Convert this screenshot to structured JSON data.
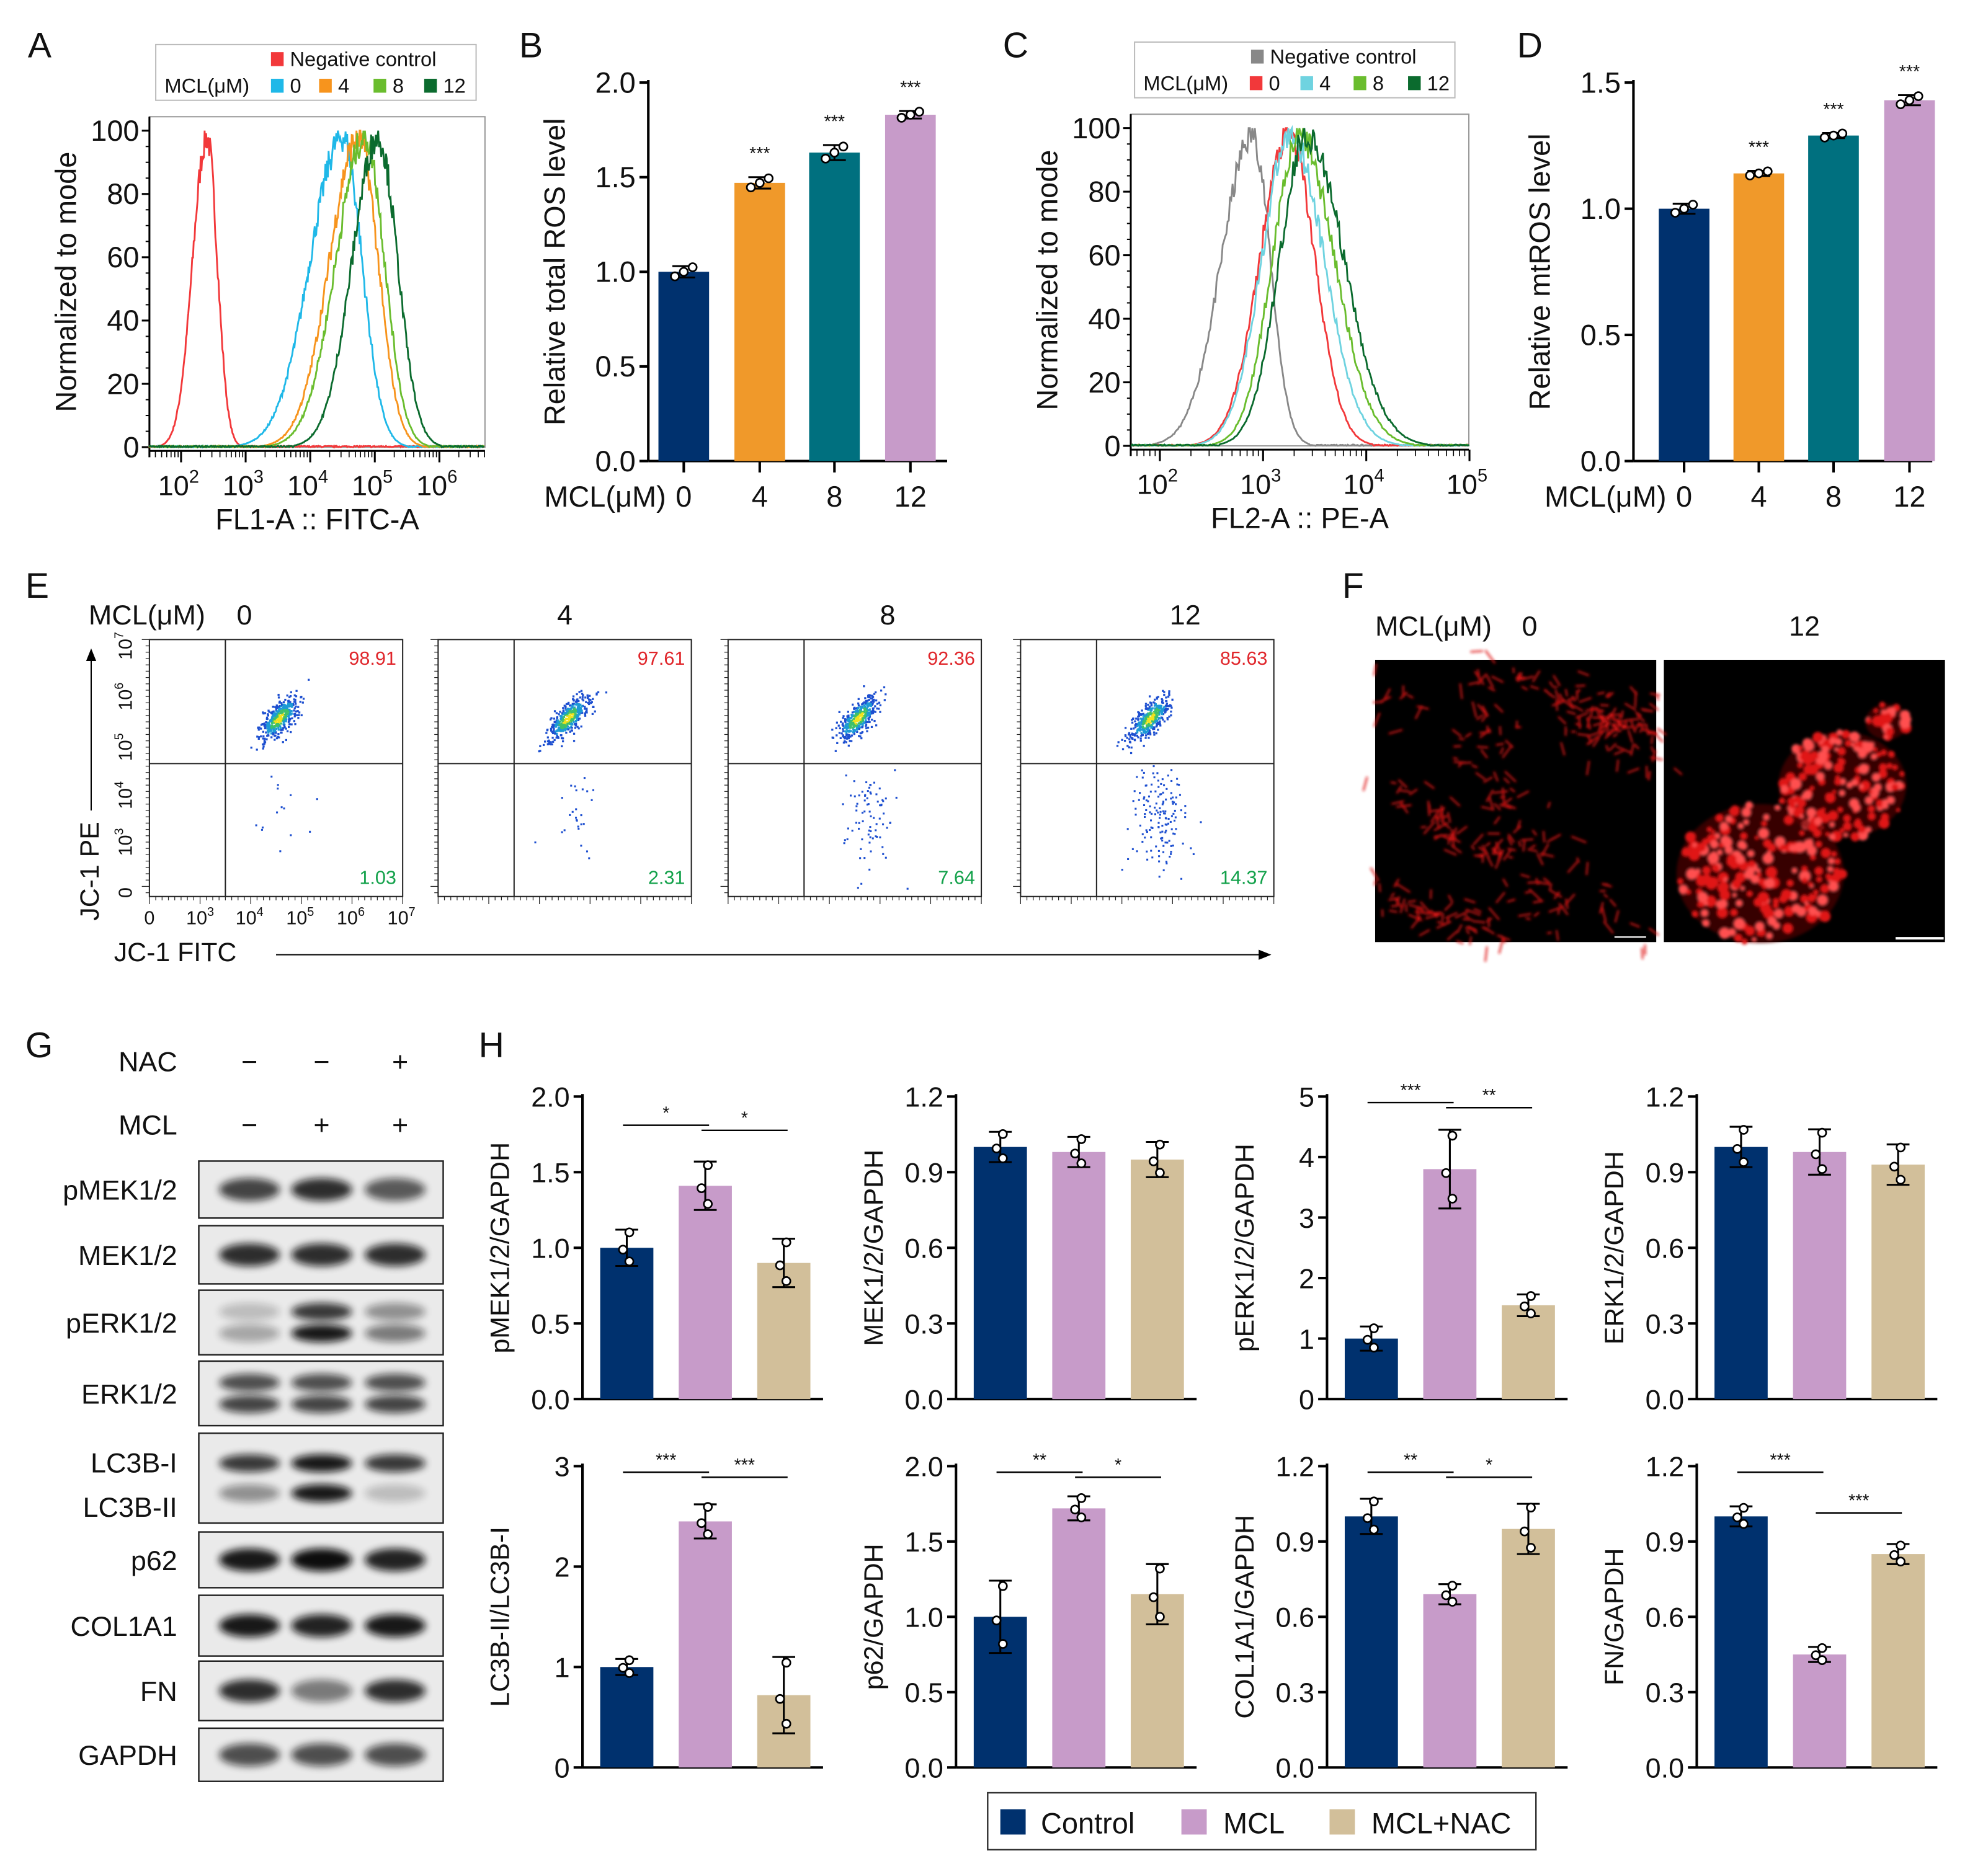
{
  "panel_labels": {
    "A": "A",
    "B": "B",
    "C": "C",
    "D": "D",
    "E": "E",
    "F": "F",
    "G": "G",
    "H": "H"
  },
  "chart_data": [
    {
      "id": "A",
      "type": "line",
      "xlabel": "FL1-A :: FITC-A",
      "ylabel": "Normalized to mode",
      "x_scale": "log10",
      "xlim_log10": [
        1.5,
        6.7
      ],
      "ylim": [
        0,
        100
      ],
      "xtick_exponents": [
        "2",
        "3",
        "4",
        "5",
        "6"
      ],
      "yticks": [
        "0",
        "20",
        "40",
        "60",
        "80",
        "100"
      ],
      "legend": {
        "negative_label": "Negative control",
        "prefix": "MCL(μM)",
        "entries": [
          "0",
          "4",
          "8",
          "12"
        ]
      },
      "series": [
        {
          "name": "Negative control",
          "color": "#f2383a",
          "peak_log10": 2.4,
          "spread_left": 0.22,
          "spread_right": 0.16
        },
        {
          "name": "0",
          "color": "#1fb8e8",
          "peak_log10": 4.5,
          "spread_left": 0.5,
          "spread_right": 0.3
        },
        {
          "name": "4",
          "color": "#f7941d",
          "peak_log10": 4.75,
          "spread_left": 0.45,
          "spread_right": 0.3
        },
        {
          "name": "8",
          "color": "#6abd2e",
          "peak_log10": 4.85,
          "spread_left": 0.45,
          "spread_right": 0.3
        },
        {
          "name": "12",
          "color": "#0b6b2e",
          "peak_log10": 5.05,
          "spread_left": 0.4,
          "spread_right": 0.3
        }
      ]
    },
    {
      "id": "B",
      "type": "bar",
      "ylabel": "Relative total ROS level",
      "xlabel_prefix": "MCL(μM)",
      "categories": [
        "0",
        "4",
        "8",
        "12"
      ],
      "values": [
        1.0,
        1.47,
        1.63,
        1.83
      ],
      "errors": [
        0.03,
        0.03,
        0.04,
        0.02
      ],
      "ylim": [
        0,
        2.0
      ],
      "yticks": [
        "0.0",
        "0.5",
        "1.0",
        "1.5",
        "2.0"
      ],
      "significance": [
        "",
        "***",
        "***",
        "***"
      ],
      "colors": [
        "#00316e",
        "#f0992a",
        "#00707f",
        "#c79bc9"
      ]
    },
    {
      "id": "C",
      "type": "line",
      "xlabel": "FL2-A :: PE-A",
      "ylabel": "Normalized to mode",
      "x_scale": "log10",
      "xlim_log10": [
        1.72,
        5.0
      ],
      "ylim": [
        0,
        100
      ],
      "xtick_exponents": [
        "2",
        "3",
        "4",
        "5"
      ],
      "yticks": [
        "0",
        "20",
        "40",
        "60",
        "80",
        "100"
      ],
      "legend": {
        "negative_label": "Negative control",
        "prefix": "MCL(μM)",
        "entries": [
          "0",
          "4",
          "8",
          "12"
        ]
      },
      "series": [
        {
          "name": "Negative control",
          "color": "#888888",
          "peak_log10": 2.9,
          "spread_left": 0.3,
          "spread_right": 0.17
        },
        {
          "name": "0",
          "color": "#f2383a",
          "peak_log10": 3.25,
          "spread_left": 0.28,
          "spread_right": 0.25
        },
        {
          "name": "4",
          "color": "#6fd3e0",
          "peak_log10": 3.27,
          "spread_left": 0.28,
          "spread_right": 0.32
        },
        {
          "name": "8",
          "color": "#6abd2e",
          "peak_log10": 3.35,
          "spread_left": 0.26,
          "spread_right": 0.34
        },
        {
          "name": "12",
          "color": "#0b6b2e",
          "peak_log10": 3.42,
          "spread_left": 0.26,
          "spread_right": 0.36
        }
      ]
    },
    {
      "id": "D",
      "type": "bar",
      "ylabel": "Relative mtROS level",
      "xlabel_prefix": "MCL(μM)",
      "categories": [
        "0",
        "4",
        "8",
        "12"
      ],
      "values": [
        1.0,
        1.14,
        1.29,
        1.43
      ],
      "errors": [
        0.02,
        0.01,
        0.01,
        0.02
      ],
      "ylim": [
        0,
        1.5
      ],
      "yticks": [
        "0.0",
        "0.5",
        "1.0",
        "1.5"
      ],
      "significance": [
        "",
        "***",
        "***",
        "***"
      ],
      "colors": [
        "#00316e",
        "#f0992a",
        "#00707f",
        "#c79bc9"
      ]
    },
    {
      "id": "E",
      "type": "scatter",
      "xlabel": "JC-1 FITC",
      "ylabel": "JC-1 PE",
      "title_prefix": "MCL(μM)",
      "tick_labels": [
        "0",
        "3",
        "4",
        "5",
        "6",
        "7"
      ],
      "panels": [
        {
          "label": "0",
          "upper_right_pct": "98.91",
          "lower_right_pct": "1.03"
        },
        {
          "label": "4",
          "upper_right_pct": "97.61",
          "lower_right_pct": "2.31"
        },
        {
          "label": "8",
          "upper_right_pct": "92.36",
          "lower_right_pct": "7.64"
        },
        {
          "label": "12",
          "upper_right_pct": "85.63",
          "lower_right_pct": "14.37"
        }
      ],
      "upper_color": "#e0262b",
      "lower_color": "#12a14a"
    },
    {
      "id": "H1",
      "type": "bar",
      "ylabel": "pMEK1/2/GAPDH",
      "values": [
        1.0,
        1.41,
        0.9
      ],
      "errors": [
        0.12,
        0.16,
        0.16
      ],
      "ylim": [
        0,
        2.0
      ],
      "yticks": [
        "0.0",
        "0.5",
        "1.0",
        "1.5",
        "2.0"
      ],
      "significance": [
        "*",
        "*"
      ]
    },
    {
      "id": "H2",
      "type": "bar",
      "ylabel": "MEK1/2/GAPDH",
      "values": [
        1.0,
        0.98,
        0.95
      ],
      "errors": [
        0.06,
        0.06,
        0.07
      ],
      "ylim": [
        0,
        1.2
      ],
      "yticks": [
        "0.0",
        "0.3",
        "0.6",
        "0.9",
        "1.2"
      ],
      "significance": [
        "",
        ""
      ]
    },
    {
      "id": "H3",
      "type": "bar",
      "ylabel": "pERK1/2/GAPDH",
      "values": [
        1.0,
        3.8,
        1.55
      ],
      "errors": [
        0.2,
        0.65,
        0.18
      ],
      "ylim": [
        0,
        5
      ],
      "yticks": [
        "0",
        "1",
        "2",
        "3",
        "4",
        "5"
      ],
      "significance": [
        "***",
        "**"
      ]
    },
    {
      "id": "H4",
      "type": "bar",
      "ylabel": "ERK1/2/GAPDH",
      "values": [
        1.0,
        0.98,
        0.93
      ],
      "errors": [
        0.08,
        0.09,
        0.08
      ],
      "ylim": [
        0,
        1.2
      ],
      "yticks": [
        "0.0",
        "0.3",
        "0.6",
        "0.9",
        "1.2"
      ],
      "significance": [
        "",
        ""
      ]
    },
    {
      "id": "H5",
      "type": "bar",
      "ylabel": "LC3B-II/LC3B-I",
      "values": [
        1.0,
        2.45,
        0.72
      ],
      "errors": [
        0.08,
        0.17,
        0.38
      ],
      "ylim": [
        0,
        3
      ],
      "yticks": [
        "0",
        "1",
        "2",
        "3"
      ],
      "significance": [
        "***",
        "***"
      ]
    },
    {
      "id": "H6",
      "type": "bar",
      "ylabel": "p62/GAPDH",
      "values": [
        1.0,
        1.72,
        1.15
      ],
      "errors": [
        0.24,
        0.08,
        0.2
      ],
      "ylim": [
        0,
        2.0
      ],
      "yticks": [
        "0.0",
        "0.5",
        "1.0",
        "1.5",
        "2.0"
      ],
      "significance": [
        "**",
        "*"
      ]
    },
    {
      "id": "H7",
      "type": "bar",
      "ylabel": "COL1A1/GAPDH",
      "values": [
        1.0,
        0.69,
        0.95
      ],
      "errors": [
        0.07,
        0.04,
        0.1
      ],
      "ylim": [
        0,
        1.2
      ],
      "yticks": [
        "0.0",
        "0.3",
        "0.6",
        "0.9",
        "1.2"
      ],
      "significance": [
        "**",
        "*"
      ]
    },
    {
      "id": "H8",
      "type": "bar",
      "ylabel": "FN/GAPDH",
      "values": [
        1.0,
        0.45,
        0.85
      ],
      "errors": [
        0.04,
        0.03,
        0.04
      ],
      "ylim": [
        0,
        1.2
      ],
      "yticks": [
        "0.0",
        "0.3",
        "0.6",
        "0.9",
        "1.2"
      ],
      "significance": [
        "***",
        "***"
      ]
    }
  ],
  "h_legend": {
    "groups": [
      "Control",
      "MCL",
      "MCL+NAC"
    ],
    "colors": [
      "#00316e",
      "#c79bc9",
      "#d2bf9a"
    ]
  },
  "microscopy": {
    "title_prefix": "MCL(μM)",
    "labels": [
      "0",
      "12"
    ]
  },
  "western_blot": {
    "treatments": [
      {
        "name": "NAC",
        "signs": [
          "−",
          "−",
          "+"
        ]
      },
      {
        "name": "MCL",
        "signs": [
          "−",
          "+",
          "+"
        ]
      }
    ],
    "rows": [
      {
        "labels": [
          "pMEK1/2"
        ],
        "bands": [
          [
            0.75,
            0.85,
            0.65
          ]
        ]
      },
      {
        "labels": [
          "MEK1/2"
        ],
        "bands": [
          [
            0.85,
            0.85,
            0.85
          ]
        ]
      },
      {
        "labels": [
          "pERK1/2"
        ],
        "bands": [
          [
            0.2,
            0.8,
            0.4
          ],
          [
            0.3,
            0.95,
            0.5
          ]
        ]
      },
      {
        "labels": [
          "ERK1/2"
        ],
        "bands": [
          [
            0.7,
            0.7,
            0.7
          ],
          [
            0.75,
            0.75,
            0.75
          ]
        ]
      },
      {
        "labels": [
          "LC3B-I",
          "LC3B-II"
        ],
        "bands": [
          [
            0.8,
            0.95,
            0.8
          ],
          [
            0.4,
            0.95,
            0.2
          ]
        ]
      },
      {
        "labels": [
          "p62"
        ],
        "bands": [
          [
            0.95,
            1.0,
            0.9
          ]
        ]
      },
      {
        "labels": [
          "COL1A1"
        ],
        "bands": [
          [
            0.95,
            0.9,
            0.95
          ]
        ]
      },
      {
        "labels": [
          "FN"
        ],
        "bands": [
          [
            0.85,
            0.5,
            0.85
          ]
        ]
      },
      {
        "labels": [
          "GAPDH"
        ],
        "bands": [
          [
            0.7,
            0.7,
            0.7
          ]
        ]
      }
    ]
  }
}
